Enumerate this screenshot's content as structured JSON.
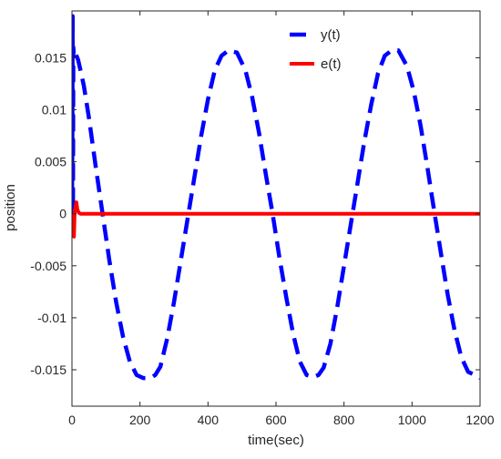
{
  "chart_data": {
    "type": "line",
    "title": "",
    "xlabel": "time(sec)",
    "ylabel": "position",
    "xlim": [
      0,
      1200
    ],
    "ylim": [
      -0.0185,
      0.0195
    ],
    "xticks": [
      0,
      200,
      400,
      600,
      800,
      1000,
      1200
    ],
    "xtick_labels": [
      "0",
      "200",
      "400",
      "600",
      "800",
      "1000",
      "1200"
    ],
    "yticks": [
      -0.015,
      -0.01,
      -0.005,
      0,
      0.005,
      0.01,
      0.015
    ],
    "ytick_labels": [
      "-0.015",
      "-0.01",
      "-0.005",
      "0",
      "0.005",
      "0.01",
      "0.015"
    ],
    "grid": false,
    "legend_position": "top-right",
    "series": [
      {
        "name": "y(t)",
        "color": "#0000ff",
        "style": "dashed",
        "x": [
          0,
          1,
          2,
          3,
          4,
          5,
          8,
          12,
          18,
          25,
          35,
          50,
          70,
          90,
          110,
          130,
          150,
          170,
          190,
          210,
          230,
          245,
          260,
          280,
          300,
          320,
          340,
          360,
          380,
          400,
          420,
          440,
          460,
          485,
          510,
          530,
          550,
          570,
          590,
          610,
          630,
          650,
          670,
          690,
          710,
          725,
          740,
          760,
          780,
          800,
          820,
          840,
          860,
          880,
          900,
          920,
          940,
          960,
          985,
          1005,
          1025,
          1045,
          1065,
          1085,
          1105,
          1125,
          1145,
          1165,
          1185,
          1200
        ],
        "values": [
          0,
          0.006,
          0.019,
          0.0005,
          0.016,
          0.0155,
          0.015,
          0.0153,
          0.0148,
          0.0138,
          0.0123,
          0.0092,
          0.0045,
          0.0,
          -0.0045,
          -0.0085,
          -0.0118,
          -0.0142,
          -0.0155,
          -0.0158,
          -0.0158,
          -0.0155,
          -0.0147,
          -0.012,
          -0.0085,
          -0.0045,
          -0.0005,
          0.0035,
          0.0075,
          0.011,
          0.0138,
          0.0152,
          0.0157,
          0.0155,
          0.0138,
          0.0112,
          0.0078,
          0.0038,
          0.0,
          -0.0042,
          -0.008,
          -0.0115,
          -0.0142,
          -0.0155,
          -0.0157,
          -0.0155,
          -0.0148,
          -0.0125,
          -0.009,
          -0.005,
          -0.001,
          0.003,
          0.007,
          0.0105,
          0.0135,
          0.0152,
          0.0157,
          0.0157,
          0.0142,
          0.0118,
          0.0085,
          0.0045,
          0.0003,
          -0.0038,
          -0.0078,
          -0.0112,
          -0.0138,
          -0.0152,
          -0.0155,
          -0.0158
        ]
      },
      {
        "name": "e(t)",
        "color": "#ff0000",
        "style": "solid",
        "x": [
          0,
          2,
          4,
          6,
          8,
          10,
          13,
          16,
          20,
          25,
          30,
          40,
          60,
          100,
          200,
          400,
          600,
          800,
          1000,
          1200
        ],
        "values": [
          0,
          -0.0005,
          -0.0018,
          -0.0022,
          0.0003,
          0.0005,
          0.0011,
          0.0004,
          0.0001,
          0.0,
          0.0,
          0.0,
          0.0,
          0.0,
          0.0,
          0.0,
          0.0,
          0.0,
          0.0,
          0.0
        ]
      }
    ]
  }
}
